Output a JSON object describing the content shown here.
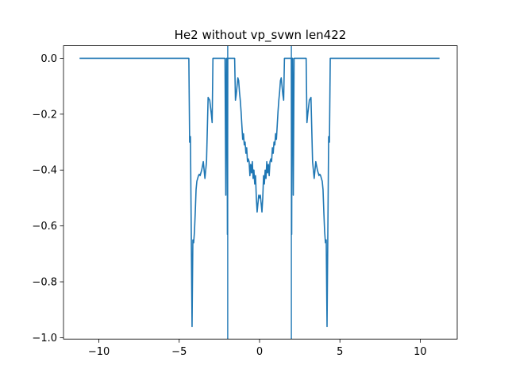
{
  "chart_data": {
    "type": "line",
    "title": "He2 without vp_svwn len422",
    "xlabel": "",
    "ylabel": "",
    "xlim": [
      -12.2,
      12.3
    ],
    "ylim": [
      -1.005,
      0.045
    ],
    "grid": false,
    "legend": "none",
    "x_ticks": [
      -10,
      -5,
      0,
      5,
      10
    ],
    "x_tick_labels": [
      "−10",
      "−5",
      "0",
      "5",
      "10"
    ],
    "y_ticks": [
      0.0,
      -0.2,
      -0.4,
      -0.6,
      -0.8,
      -1.0
    ],
    "y_tick_labels": [
      "0.0",
      "−0.2",
      "−0.4",
      "−0.6",
      "−0.8",
      "−1.0"
    ],
    "vlines": [
      -1.98,
      1.98
    ],
    "colors": {
      "series": "#1f77b4",
      "vline": "#1f77b4",
      "axes": "#000000"
    },
    "series": [
      {
        "x": [
          -11.2,
          -10.0,
          -8.0,
          -6.0,
          -4.4,
          -4.35,
          -4.3,
          -4.25,
          -4.2,
          -4.15,
          -4.1,
          -4.05,
          -4.0,
          -3.95,
          -3.9,
          -3.85,
          -3.8,
          -3.75,
          -3.7,
          -3.6,
          -3.5,
          -3.4,
          -3.3,
          -3.2,
          -3.1,
          -3.0,
          -2.95,
          -2.9,
          -2.85,
          -2.8,
          -2.75,
          -2.7,
          -2.6,
          -2.5,
          -2.4,
          -2.3,
          -2.25,
          -2.2,
          -2.15,
          -2.1,
          -2.06,
          -2.02,
          -2.0,
          -1.98,
          -1.96,
          -1.94,
          -1.9,
          -1.85,
          -1.8,
          -1.75,
          -1.7,
          -1.65,
          -1.6,
          -1.55,
          -1.5,
          -1.45,
          -1.4,
          -1.35,
          -1.3,
          -1.25,
          -1.2,
          -1.15,
          -1.1,
          -1.05,
          -1.0,
          -0.95,
          -0.9,
          -0.85,
          -0.8,
          -0.75,
          -0.7,
          -0.65,
          -0.6,
          -0.55,
          -0.5,
          -0.45,
          -0.4,
          -0.35,
          -0.3,
          -0.25,
          -0.2,
          -0.15,
          -0.1,
          -0.05,
          0.0,
          0.05,
          0.1,
          0.15,
          0.2,
          0.25,
          0.3,
          0.35,
          0.4,
          0.45,
          0.5,
          0.55,
          0.6,
          0.65,
          0.7,
          0.75,
          0.8,
          0.85,
          0.9,
          0.95,
          1.0,
          1.05,
          1.1,
          1.15,
          1.2,
          1.25,
          1.3,
          1.35,
          1.4,
          1.45,
          1.5,
          1.55,
          1.6,
          1.65,
          1.7,
          1.75,
          1.8,
          1.85,
          1.9,
          1.94,
          1.96,
          1.98,
          2.0,
          2.02,
          2.06,
          2.1,
          2.15,
          2.2,
          2.25,
          2.3,
          2.4,
          2.5,
          2.6,
          2.7,
          2.75,
          2.8,
          2.85,
          2.9,
          2.95,
          3.0,
          3.1,
          3.2,
          3.3,
          3.4,
          3.5,
          3.6,
          3.7,
          3.75,
          3.8,
          3.85,
          3.9,
          3.95,
          4.0,
          4.05,
          4.1,
          4.15,
          4.2,
          4.25,
          4.3,
          4.35,
          4.4,
          6.0,
          8.0,
          10.0,
          11.2
        ],
        "y": [
          0.0,
          0.0,
          0.0,
          0.0,
          0.0,
          -0.3,
          -0.28,
          -0.62,
          -0.96,
          -0.65,
          -0.66,
          -0.62,
          -0.55,
          -0.47,
          -0.44,
          -0.43,
          -0.42,
          -0.415,
          -0.42,
          -0.4,
          -0.37,
          -0.43,
          -0.37,
          -0.14,
          -0.15,
          -0.2,
          -0.23,
          0.0,
          0.0,
          0.0,
          0.0,
          0.0,
          0.0,
          0.0,
          0.0,
          0.0,
          0.0,
          0.0,
          0.0,
          -0.49,
          0.0,
          0.0,
          -0.63,
          0.0,
          0.0,
          0.0,
          0.0,
          0.0,
          0.0,
          0.0,
          0.0,
          0.0,
          0.0,
          0.0,
          -0.15,
          -0.13,
          -0.1,
          -0.07,
          -0.08,
          -0.12,
          -0.15,
          -0.19,
          -0.24,
          -0.29,
          -0.27,
          -0.31,
          -0.3,
          -0.34,
          -0.32,
          -0.37,
          -0.36,
          -0.37,
          -0.42,
          -0.38,
          -0.41,
          -0.37,
          -0.43,
          -0.4,
          -0.45,
          -0.42,
          -0.5,
          -0.55,
          -0.52,
          -0.49,
          -0.5,
          -0.49,
          -0.52,
          -0.55,
          -0.5,
          -0.42,
          -0.45,
          -0.4,
          -0.43,
          -0.37,
          -0.41,
          -0.38,
          -0.42,
          -0.37,
          -0.36,
          -0.37,
          -0.32,
          -0.34,
          -0.3,
          -0.31,
          -0.27,
          -0.29,
          -0.24,
          -0.19,
          -0.15,
          -0.12,
          -0.08,
          -0.07,
          -0.1,
          -0.13,
          -0.15,
          0.0,
          0.0,
          0.0,
          0.0,
          0.0,
          0.0,
          0.0,
          0.0,
          0.0,
          0.0,
          0.0,
          -0.63,
          0.0,
          0.0,
          -0.49,
          0.0,
          0.0,
          0.0,
          0.0,
          0.0,
          0.0,
          0.0,
          0.0,
          0.0,
          0.0,
          0.0,
          0.0,
          -0.23,
          -0.2,
          -0.15,
          -0.14,
          -0.37,
          -0.43,
          -0.37,
          -0.4,
          -0.42,
          -0.415,
          -0.42,
          -0.43,
          -0.44,
          -0.47,
          -0.55,
          -0.62,
          -0.66,
          -0.65,
          -0.96,
          -0.62,
          -0.28,
          -0.3,
          0.0,
          0.0,
          0.0,
          0.0,
          0.0
        ]
      }
    ]
  }
}
